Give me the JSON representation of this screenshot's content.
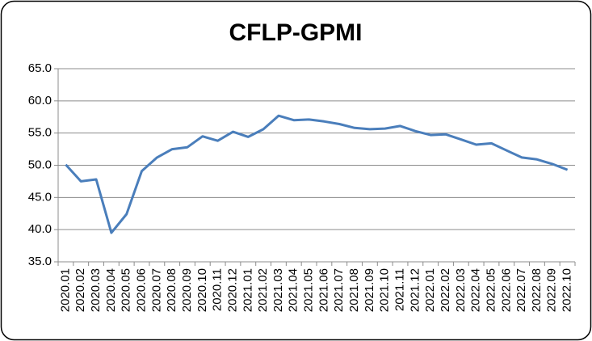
{
  "chart_data": {
    "type": "line",
    "title": "CFLP-GPMI",
    "categories": [
      "2020.01",
      "2020.02",
      "2020.03",
      "2020.04",
      "2020.05",
      "2020.06",
      "2020.07",
      "2020.08",
      "2020.09",
      "2020.10",
      "2020.11",
      "2020.12",
      "2021.01",
      "2021.02",
      "2021.03",
      "2021.04",
      "2021.05",
      "2021.06",
      "2021.07",
      "2021.08",
      "2021.09",
      "2021.10",
      "2021.11",
      "2021.12",
      "2022.01",
      "2022.02",
      "2022.03",
      "2022.04",
      "2022.05",
      "2022.06",
      "2022.07",
      "2022.08",
      "2022.09",
      "2022.10"
    ],
    "values": [
      50.1,
      47.5,
      47.8,
      39.5,
      42.4,
      49.1,
      51.2,
      52.5,
      52.8,
      54.5,
      53.8,
      55.2,
      54.4,
      55.6,
      57.7,
      57.0,
      57.1,
      56.8,
      56.4,
      55.8,
      55.6,
      55.7,
      56.1,
      55.3,
      54.7,
      54.8,
      54.0,
      53.2,
      53.4,
      52.3,
      51.2,
      50.9,
      50.2,
      49.3
    ],
    "color": "#4a7ebb",
    "ylim": [
      35,
      65
    ],
    "yticks": [
      {
        "value": 35,
        "label": "35.0"
      },
      {
        "value": 40,
        "label": "40.0"
      },
      {
        "value": 45,
        "label": "45.0"
      },
      {
        "value": 50,
        "label": "50.0"
      },
      {
        "value": 55,
        "label": "55.0"
      },
      {
        "value": 60,
        "label": "60.0"
      },
      {
        "value": 65,
        "label": "65.0"
      }
    ],
    "grid": true
  }
}
